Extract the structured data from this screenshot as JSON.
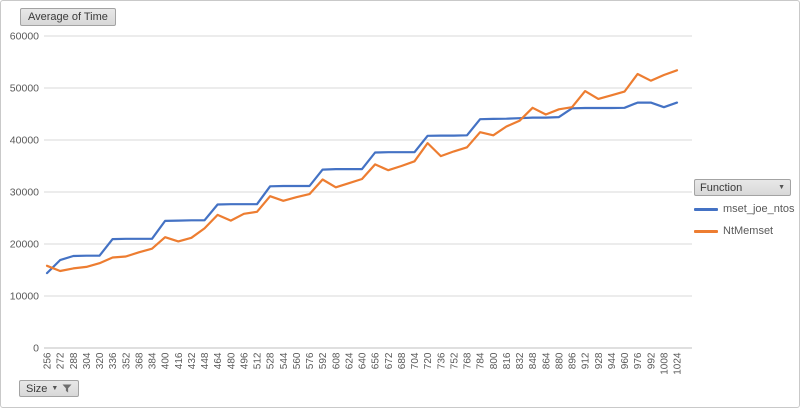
{
  "buttons": {
    "value_field": "Average of Time",
    "axis_field": "Size",
    "legend_field": "Function",
    "dropdown_glyph": "▼"
  },
  "colors": {
    "gridline": "#d9d9d9",
    "axis_line": "#bfbfbf",
    "tick_label": "#595959",
    "series_blue": "#4472C4",
    "series_orange": "#ED7D31"
  },
  "chart_data": {
    "type": "line",
    "title": "Average of Time",
    "xlabel": "Size",
    "ylabel": "",
    "legend_title": "Function",
    "legend_position": "right",
    "grid": "horizontal",
    "ylim": [
      0,
      60000
    ],
    "ytick_interval": 10000,
    "yticks": [
      0,
      10000,
      20000,
      30000,
      40000,
      50000,
      60000
    ],
    "x": [
      256,
      272,
      288,
      304,
      320,
      336,
      352,
      368,
      384,
      400,
      416,
      432,
      448,
      464,
      480,
      496,
      512,
      528,
      544,
      560,
      576,
      592,
      608,
      624,
      640,
      656,
      672,
      688,
      704,
      720,
      736,
      752,
      768,
      784,
      800,
      816,
      832,
      848,
      864,
      880,
      896,
      912,
      928,
      944,
      960,
      976,
      992,
      1008,
      1024
    ],
    "series": [
      {
        "name": "mset_joe_ntos",
        "color": "#4472C4",
        "values": [
          14400,
          16900,
          17700,
          17750,
          17750,
          20950,
          21000,
          21000,
          21000,
          24450,
          24500,
          24550,
          24550,
          27600,
          27650,
          27650,
          27650,
          31100,
          31150,
          31150,
          31150,
          34300,
          34400,
          34400,
          34400,
          37600,
          37650,
          37650,
          37650,
          40800,
          40850,
          40850,
          40900,
          44000,
          44050,
          44100,
          44200,
          44300,
          44300,
          44400,
          46100,
          46150,
          46150,
          46150,
          46200,
          47200,
          47200,
          46300,
          47200
        ]
      },
      {
        "name": "NtMemset",
        "color": "#ED7D31",
        "values": [
          15800,
          14800,
          15300,
          15600,
          16300,
          17400,
          17600,
          18400,
          19100,
          21300,
          20500,
          21200,
          23000,
          25600,
          24500,
          25800,
          26200,
          29200,
          28300,
          29000,
          29600,
          32400,
          30900,
          31700,
          32500,
          35300,
          34200,
          35000,
          35900,
          39400,
          36900,
          37800,
          38600,
          41500,
          40900,
          42600,
          43700,
          46200,
          44900,
          45900,
          46300,
          49400,
          47900,
          48600,
          49300,
          52700,
          51400,
          52500,
          53400
        ]
      }
    ]
  }
}
